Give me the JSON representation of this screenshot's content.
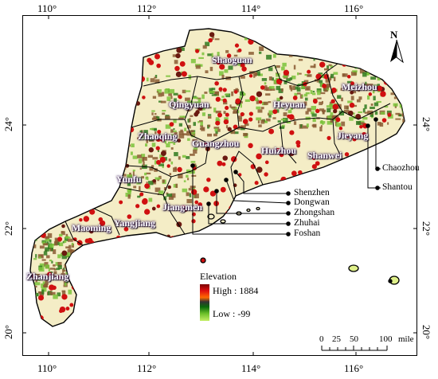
{
  "axes": {
    "lon_ticks": [
      "110°",
      "112°",
      "114°",
      "116°"
    ],
    "lat_ticks": [
      "24°",
      "22°",
      "20°"
    ]
  },
  "north_label": "N",
  "cities": {
    "shaoguan": "Shaoguan",
    "qingyuan": "Qingyuan",
    "heyuan": "Heyuan",
    "meizhou": "Meizhou",
    "zhaoqing": "Zhaoqing",
    "guangzhou": "Guangzhou",
    "huizhou": "Huizhou",
    "jieyang": "Jieyang",
    "shanwei": "Shanwei",
    "yunfu": "Yunfu",
    "jiangmen": "Jiangmen",
    "maoming": "Maoming",
    "yangjiang": "Yangjiang",
    "zhanjiang": "Zhanjiang",
    "chaozhou": "Chaozhou",
    "shantou": "Shantou"
  },
  "pearl_delta_labels": {
    "shenzhen": "Shenzhen",
    "dongwan": "Dongwan",
    "zhongshan": "Zhongshan",
    "zhuhai": "Zhuhai",
    "foshan": "Foshan"
  },
  "legend": {
    "title": "Elevation",
    "high": "High : 1884",
    "low": "Low : -99",
    "colors": [
      "#7a0000",
      "#e01010",
      "#ff6a00",
      "#333333",
      "#0a6a0a",
      "#6bbf2a",
      "#c4ee66"
    ]
  },
  "scale_bar": {
    "ticks": [
      "0",
      "25",
      "50",
      "100"
    ],
    "unit": "mile"
  },
  "colors": {
    "land": "#f4edc6",
    "dots": "#d01010",
    "boundary": "#000000",
    "highland_brown": "#8a5a32",
    "highland_green": "#7ac23a"
  }
}
